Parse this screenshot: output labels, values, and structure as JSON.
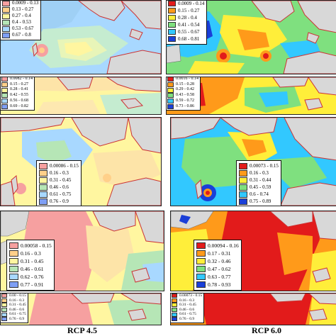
{
  "captions": {
    "left": "RCP 4.5",
    "right": "RCP 6.0"
  },
  "panels": [
    {
      "id": "L1",
      "scenario": "RCP 4.5",
      "legend": {
        "rows": [
          {
            "label": "0.0009 - 0.13",
            "color": "#f6a0a0"
          },
          {
            "label": "0.13 - 0.27",
            "color": "#ffd08a"
          },
          {
            "label": "0.27 - 0.4",
            "color": "#fff6a0"
          },
          {
            "label": "0.4 - 0.53",
            "color": "#b6e6b6"
          },
          {
            "label": "0.53 - 0.67",
            "color": "#a8d8ff"
          },
          {
            "label": "0.67 - 0.8",
            "color": "#7f9ff5"
          }
        ]
      }
    },
    {
      "id": "R1",
      "scenario": "RCP 6.0",
      "legend": {
        "rows": [
          {
            "label": "0.0009 - 0.14",
            "color": "#e21b1b"
          },
          {
            "label": "0.15 - 0.27",
            "color": "#ff9a1a"
          },
          {
            "label": "0.28 - 0.4",
            "color": "#ffee3a"
          },
          {
            "label": "0.41 - 0.54",
            "color": "#7fe07f"
          },
          {
            "label": "0.55 - 0.67",
            "color": "#32c8ff"
          },
          {
            "label": "0.68 - 0.81",
            "color": "#1a3fd8"
          }
        ]
      }
    },
    {
      "id": "L2",
      "scenario": "RCP 4.5",
      "legend": {
        "rows": [
          {
            "label": "0.0082 - 0.14",
            "color": "#f6a0a0"
          },
          {
            "label": "0.15 - 0.27",
            "color": "#ffd08a"
          },
          {
            "label": "0.28 - 0.41",
            "color": "#fff6a0"
          },
          {
            "label": "0.42 - 0.55",
            "color": "#b6e6b6"
          },
          {
            "label": "0.56 - 0.68",
            "color": "#a8d8ff"
          },
          {
            "label": "0.69 - 0.82",
            "color": "#7f9ff5"
          }
        ]
      }
    },
    {
      "id": "R2",
      "scenario": "RCP 6.0",
      "legend": {
        "rows": [
          {
            "label": "0.0016 - 0.14",
            "color": "#e21b1b"
          },
          {
            "label": "0.15 - 0.28",
            "color": "#ff9a1a"
          },
          {
            "label": "0.29 - 0.42",
            "color": "#ffee3a"
          },
          {
            "label": "0.43 - 0.58",
            "color": "#7fe07f"
          },
          {
            "label": "0.59 - 0.72",
            "color": "#32c8ff"
          },
          {
            "label": "0.73 - 0.86",
            "color": "#1a3fd8"
          }
        ]
      }
    },
    {
      "id": "L3",
      "scenario": "RCP 4.5",
      "legend": {
        "rows": [
          {
            "label": "0.00086 - 0.15",
            "color": "#f6a0a0"
          },
          {
            "label": "0.16 - 0.3",
            "color": "#ffd08a"
          },
          {
            "label": "0.31 - 0.45",
            "color": "#fff6a0"
          },
          {
            "label": "0.46 - 0.6",
            "color": "#b6e6b6"
          },
          {
            "label": "0.61 - 0.75",
            "color": "#a8d8ff"
          },
          {
            "label": "0.76 - 0.9",
            "color": "#7f9ff5"
          }
        ]
      }
    },
    {
      "id": "R3",
      "scenario": "RCP 6.0",
      "legend": {
        "rows": [
          {
            "label": "0.00073 - 0.15",
            "color": "#e21b1b"
          },
          {
            "label": "0.16 - 0.3",
            "color": "#ff9a1a"
          },
          {
            "label": "0.31 - 0.44",
            "color": "#ffee3a"
          },
          {
            "label": "0.45 - 0.59",
            "color": "#7fe07f"
          },
          {
            "label": "0.6 - 0.74",
            "color": "#32c8ff"
          },
          {
            "label": "0.75 - 0.89",
            "color": "#1a3fd8"
          }
        ]
      }
    },
    {
      "id": "L4",
      "scenario": "RCP 4.5",
      "legend": {
        "rows": [
          {
            "label": "0.00058 - 0.15",
            "color": "#f6a0a0"
          },
          {
            "label": "0.16 - 0.3",
            "color": "#ffd08a"
          },
          {
            "label": "0.31 - 0.45",
            "color": "#fff6a0"
          },
          {
            "label": "0.46 - 0.61",
            "color": "#b6e6b6"
          },
          {
            "label": "0.62 - 0.76",
            "color": "#a8d8ff"
          },
          {
            "label": "0.77 - 0.91",
            "color": "#7f9ff5"
          }
        ]
      }
    },
    {
      "id": "R4",
      "scenario": "RCP 6.0",
      "legend": {
        "rows": [
          {
            "label": "0.00094 - 0.16",
            "color": "#e21b1b"
          },
          {
            "label": "0.17 - 0.31",
            "color": "#ff9a1a"
          },
          {
            "label": "0.32 - 0.46",
            "color": "#ffee3a"
          },
          {
            "label": "0.47 - 0.62",
            "color": "#7fe07f"
          },
          {
            "label": "0.63 - 0.77",
            "color": "#32c8ff"
          },
          {
            "label": "0.78 - 0.93",
            "color": "#1a3fd8"
          }
        ]
      }
    },
    {
      "id": "L5",
      "scenario": "RCP 4.5",
      "legend": {
        "rows": [
          {
            "label": "0.00 - 0.15",
            "color": "#f6a0a0"
          },
          {
            "label": "0.16 - 0.3",
            "color": "#ffd08a"
          },
          {
            "label": "0.31 - 0.45",
            "color": "#fff6a0"
          },
          {
            "label": "0.46 - 0.6",
            "color": "#b6e6b6"
          },
          {
            "label": "0.61 - 0.75",
            "color": "#a8d8ff"
          },
          {
            "label": "0.76 - 0.9",
            "color": "#7f9ff5"
          }
        ]
      }
    },
    {
      "id": "R5",
      "scenario": "RCP 6.0",
      "legend": {
        "rows": [
          {
            "label": "0.00073 - 0.15",
            "color": "#e21b1b"
          },
          {
            "label": "0.16 - 0.3",
            "color": "#ff9a1a"
          },
          {
            "label": "0.31 - 0.45",
            "color": "#ffee3a"
          },
          {
            "label": "0.46 - 0.6",
            "color": "#7fe07f"
          },
          {
            "label": "0.61 - 0.75",
            "color": "#32c8ff"
          },
          {
            "label": "0.76 - 0.9",
            "color": "#1a3fd8"
          }
        ]
      }
    }
  ]
}
